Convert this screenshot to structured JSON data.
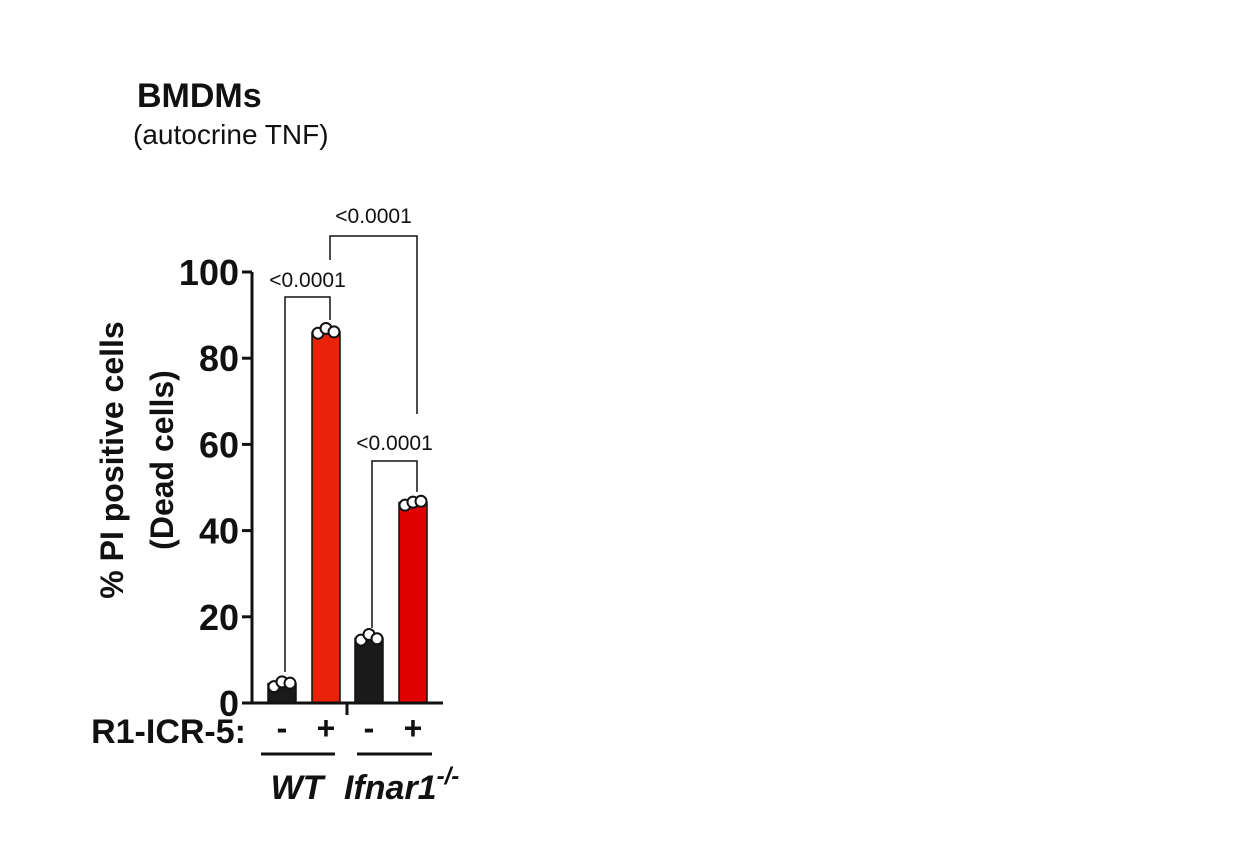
{
  "chart_data": {
    "type": "bar",
    "title": "BMDMs",
    "subtitle": "(autocrine TNF)",
    "ylabel_line1": "% PI positive cells",
    "ylabel_line2": "(Dead cells)",
    "ylim": [
      0,
      100
    ],
    "yticks": [
      "0",
      "20",
      "40",
      "60",
      "80",
      "100"
    ],
    "treatment_label": "R1-ICR-5:",
    "bars": [
      {
        "group": "WT",
        "treatment": "-",
        "value": 4.5,
        "color": "#1a1a1a",
        "points": [
          3.8,
          4.9,
          4.6
        ]
      },
      {
        "group": "WT",
        "treatment": "+",
        "value": 86,
        "color": "#e8230a",
        "points": [
          85.8,
          86.9,
          86.1
        ]
      },
      {
        "group": "Ifnar1-/-",
        "treatment": "-",
        "value": 15,
        "color": "#1a1a1a",
        "points": [
          14.6,
          15.9,
          14.9
        ]
      },
      {
        "group": "Ifnar1-/-",
        "treatment": "+",
        "value": 46.5,
        "color": "#e00000",
        "points": [
          45.9,
          46.6,
          46.8
        ]
      }
    ],
    "groups": [
      {
        "name": "WT",
        "sup": ""
      },
      {
        "name": "Ifnar1",
        "sup": "-/-"
      }
    ],
    "comparisons": [
      {
        "bars": [
          0,
          1
        ],
        "label": "<0.0001"
      },
      {
        "bars": [
          2,
          3
        ],
        "label": "<0.0001"
      },
      {
        "bars": [
          1,
          3
        ],
        "label": "<0.0001"
      }
    ],
    "grid": false
  }
}
